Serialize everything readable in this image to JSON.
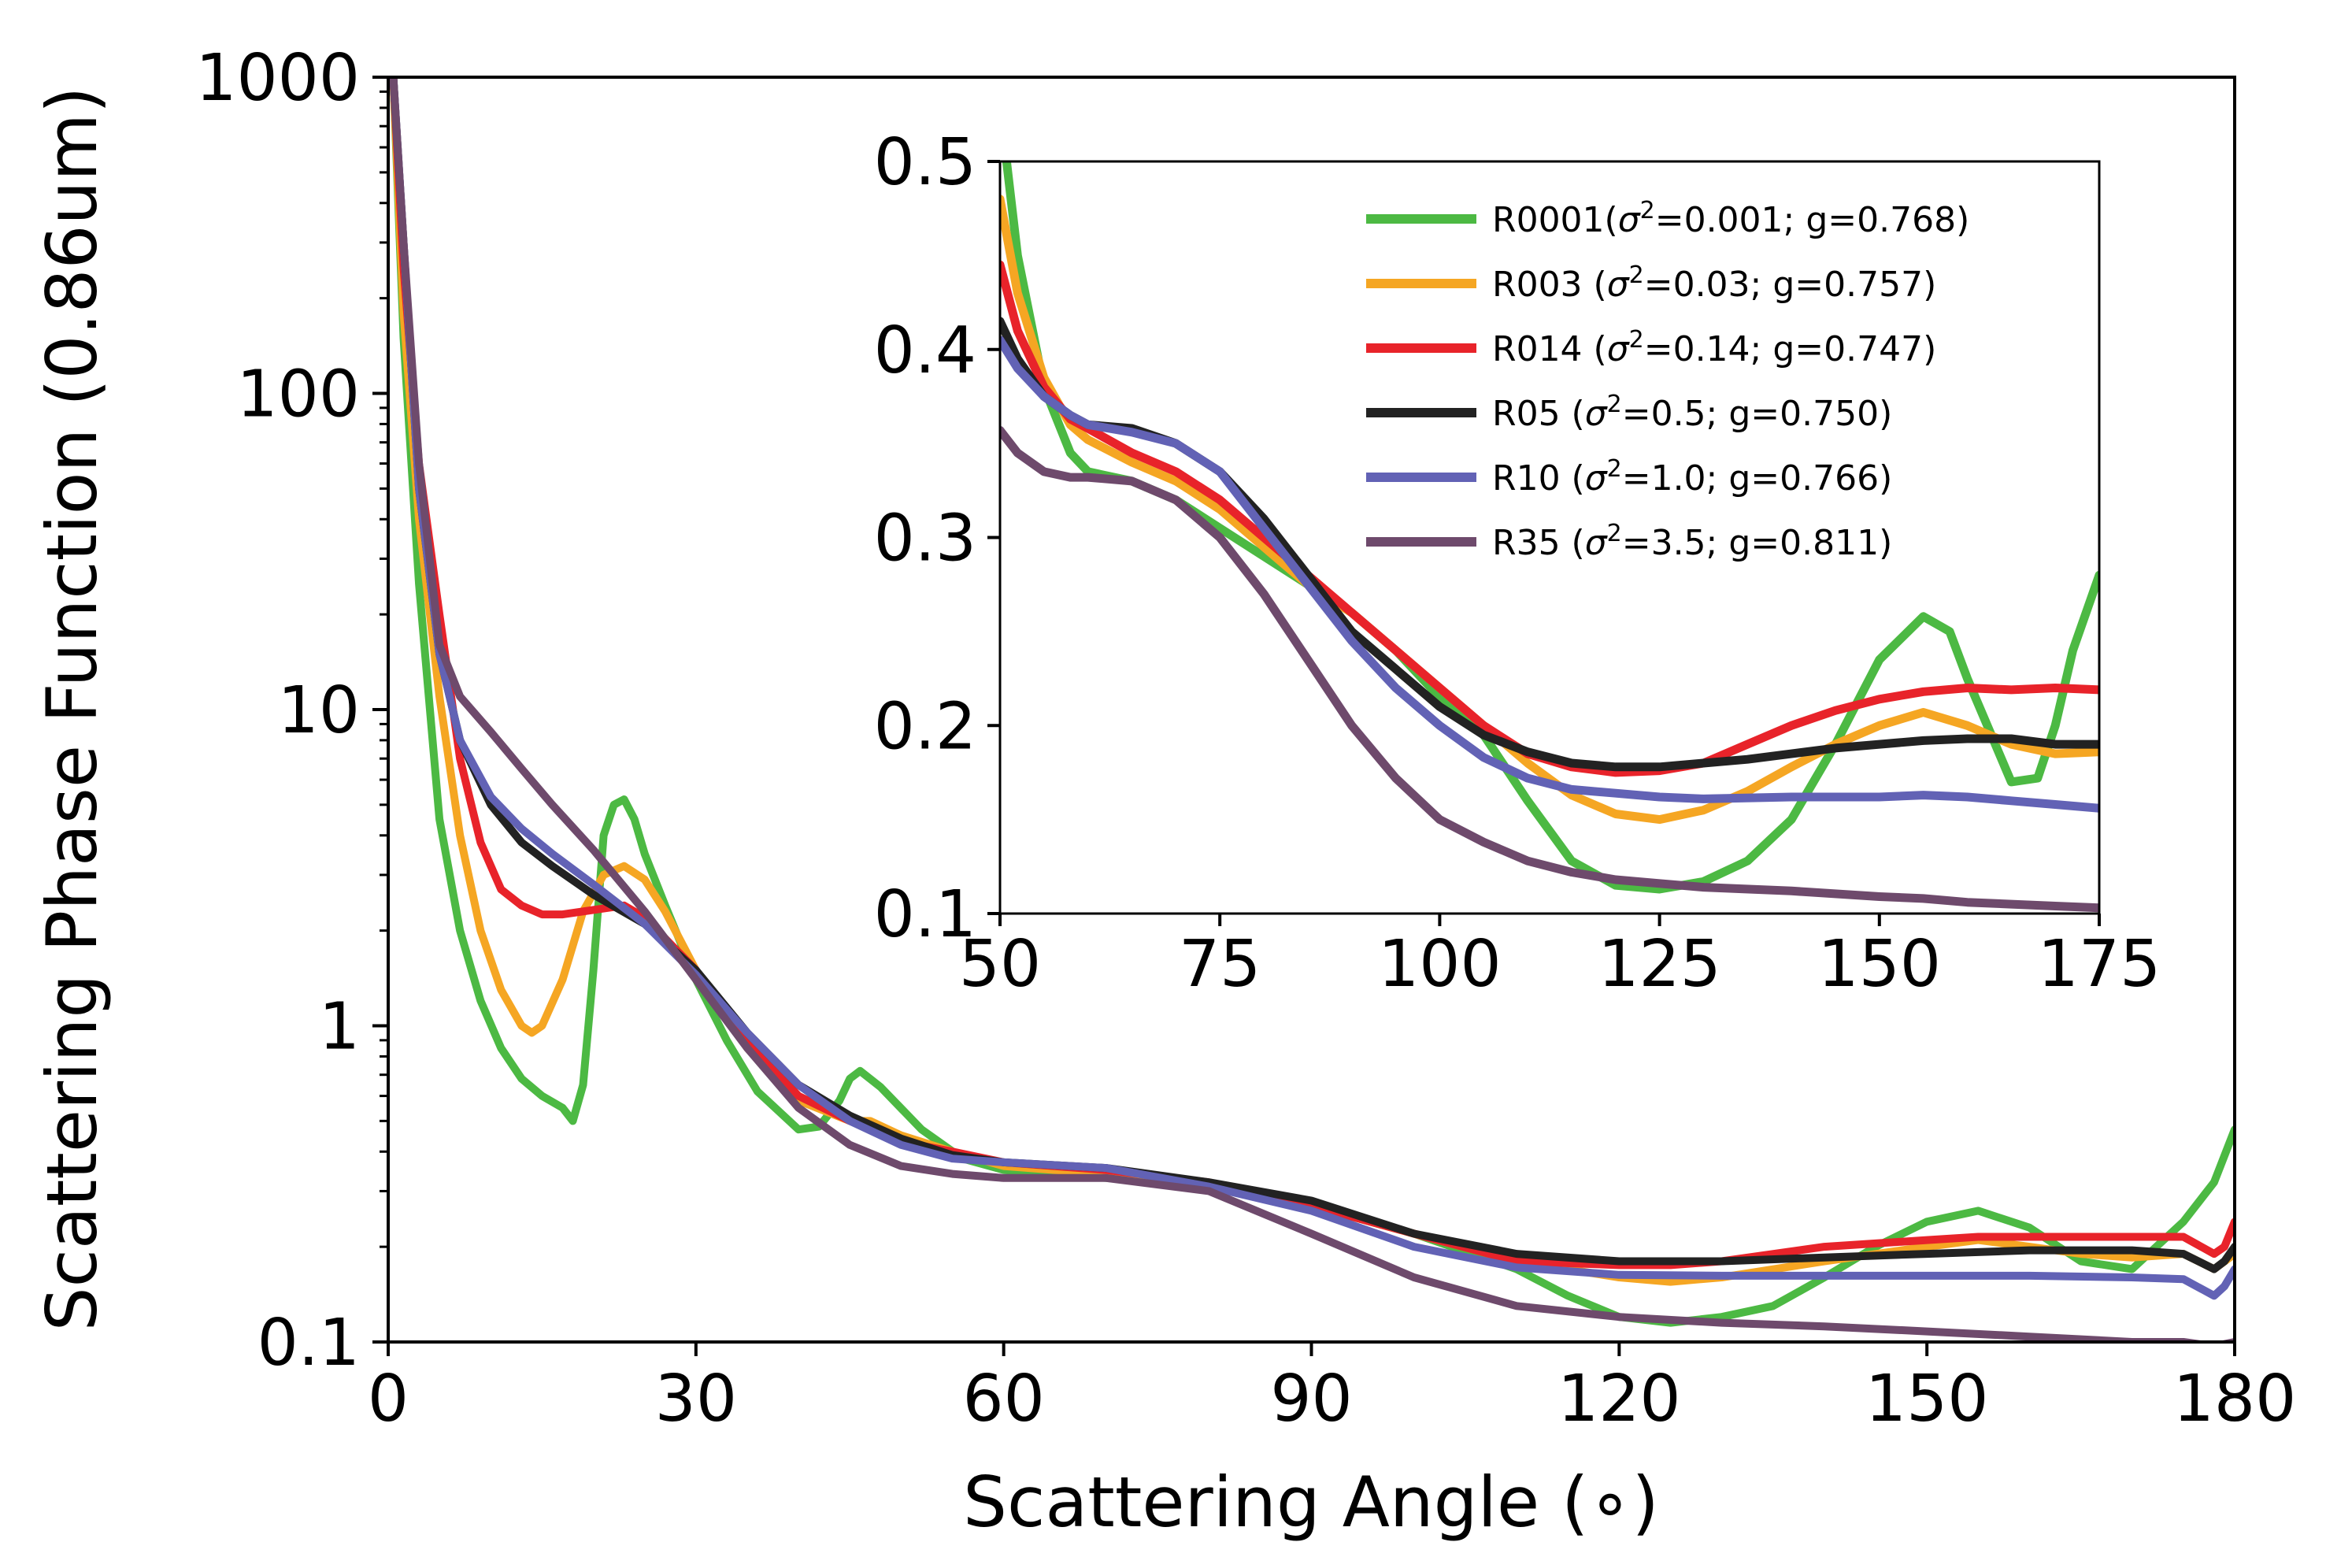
{
  "chart_data": [
    {
      "type": "line",
      "name": "main",
      "xlabel": "Scattering Angle (∘)",
      "ylabel": "Scattering Phase Function (0.86um)",
      "yscale": "log",
      "xlim": [
        0,
        180
      ],
      "ylim": [
        0.1,
        1000
      ],
      "xticks": [
        0,
        30,
        60,
        90,
        120,
        150,
        180
      ],
      "xtick_labels": [
        "0",
        "30",
        "60",
        "90",
        "120",
        "150",
        "180"
      ],
      "yticks": [
        0.1,
        1,
        10,
        100,
        1000
      ],
      "ytick_labels": [
        "0.1",
        "1",
        "10",
        "100",
        "1000"
      ],
      "series": [
        {
          "name": "R0001",
          "color": "#4cb943",
          "x": [
            0.5,
            1.5,
            3,
            5,
            7,
            9,
            11,
            13,
            15,
            17,
            18,
            19,
            20,
            21,
            22,
            23,
            24,
            25,
            27,
            30,
            33,
            36,
            40,
            42,
            44,
            45,
            46,
            48,
            52,
            56,
            60,
            70,
            80,
            90,
            100,
            110,
            115,
            120,
            125,
            130,
            135,
            140,
            145,
            150,
            155,
            160,
            165,
            170,
            175,
            178,
            180
          ],
          "y": [
            1000,
            150,
            25,
            4.5,
            2.0,
            1.2,
            0.85,
            0.68,
            0.6,
            0.55,
            0.5,
            0.65,
            1.5,
            4.0,
            5.0,
            5.2,
            4.5,
            3.5,
            2.4,
            1.4,
            0.9,
            0.62,
            0.47,
            0.48,
            0.58,
            0.68,
            0.72,
            0.64,
            0.47,
            0.38,
            0.35,
            0.33,
            0.31,
            0.27,
            0.22,
            0.17,
            0.14,
            0.12,
            0.115,
            0.12,
            0.13,
            0.16,
            0.2,
            0.24,
            0.26,
            0.23,
            0.18,
            0.17,
            0.24,
            0.32,
            0.47
          ]
        },
        {
          "name": "R003",
          "color": "#f5a623",
          "x": [
            0.5,
            1.5,
            3,
            5,
            7,
            9,
            11,
            13,
            14,
            15,
            17,
            19,
            21,
            23,
            25,
            27,
            30,
            35,
            40,
            45,
            47,
            50,
            55,
            60,
            70,
            80,
            90,
            100,
            110,
            120,
            125,
            130,
            140,
            150,
            155,
            160,
            165,
            170,
            175,
            178,
            180
          ],
          "y": [
            1000,
            180,
            40,
            11,
            4.0,
            2.0,
            1.3,
            1.0,
            0.95,
            1.0,
            1.4,
            2.3,
            3.0,
            3.2,
            2.9,
            2.3,
            1.5,
            0.85,
            0.58,
            0.5,
            0.5,
            0.45,
            0.4,
            0.36,
            0.34,
            0.31,
            0.27,
            0.22,
            0.18,
            0.16,
            0.155,
            0.16,
            0.18,
            0.2,
            0.21,
            0.2,
            0.19,
            0.185,
            0.19,
            0.17,
            0.19
          ]
        },
        {
          "name": "R014",
          "color": "#e8232a",
          "x": [
            0.5,
            1.5,
            3,
            5,
            7,
            9,
            11,
            13,
            15,
            17,
            19,
            21,
            23,
            25,
            30,
            35,
            40,
            45,
            50,
            55,
            60,
            70,
            80,
            90,
            100,
            110,
            120,
            125,
            130,
            140,
            150,
            155,
            160,
            165,
            170,
            175,
            178,
            179,
            180
          ],
          "y": [
            1000,
            250,
            60,
            20,
            7.0,
            3.8,
            2.7,
            2.4,
            2.25,
            2.25,
            2.3,
            2.35,
            2.4,
            2.2,
            1.5,
            0.9,
            0.6,
            0.5,
            0.43,
            0.4,
            0.37,
            0.35,
            0.32,
            0.27,
            0.22,
            0.18,
            0.175,
            0.175,
            0.18,
            0.2,
            0.21,
            0.215,
            0.215,
            0.215,
            0.215,
            0.215,
            0.19,
            0.2,
            0.24
          ]
        },
        {
          "name": "R05",
          "color": "#222222",
          "x": [
            0.5,
            1.5,
            3,
            5,
            7,
            10,
            13,
            16,
            20,
            25,
            30,
            35,
            40,
            45,
            50,
            55,
            60,
            70,
            80,
            90,
            100,
            110,
            120,
            125,
            130,
            140,
            150,
            160,
            170,
            175,
            178,
            179,
            180
          ],
          "y": [
            1000,
            300,
            50,
            15,
            8.0,
            5.0,
            3.8,
            3.2,
            2.6,
            2.1,
            1.5,
            0.95,
            0.65,
            0.52,
            0.44,
            0.39,
            0.37,
            0.355,
            0.32,
            0.28,
            0.22,
            0.19,
            0.18,
            0.18,
            0.18,
            0.185,
            0.19,
            0.195,
            0.195,
            0.19,
            0.17,
            0.18,
            0.2
          ]
        },
        {
          "name": "R10",
          "color": "#6262b5",
          "x": [
            0.5,
            1.5,
            3,
            5,
            7,
            10,
            13,
            16,
            20,
            25,
            30,
            35,
            40,
            45,
            50,
            55,
            60,
            70,
            80,
            90,
            100,
            110,
            120,
            130,
            140,
            150,
            160,
            170,
            175,
            178,
            179,
            180
          ],
          "y": [
            1000,
            300,
            50,
            15,
            8.0,
            5.3,
            4.2,
            3.5,
            2.8,
            2.1,
            1.45,
            0.95,
            0.65,
            0.5,
            0.42,
            0.38,
            0.37,
            0.355,
            0.31,
            0.26,
            0.2,
            0.172,
            0.163,
            0.162,
            0.162,
            0.162,
            0.162,
            0.16,
            0.158,
            0.14,
            0.15,
            0.17
          ]
        },
        {
          "name": "R35",
          "color": "#6e4a6c",
          "x": [
            0.5,
            1.5,
            3,
            5,
            7,
            10,
            13,
            16,
            20,
            25,
            30,
            35,
            40,
            45,
            50,
            55,
            60,
            70,
            80,
            90,
            100,
            110,
            120,
            130,
            140,
            150,
            160,
            170,
            175,
            178,
            180
          ],
          "y": [
            1000,
            300,
            60,
            16,
            11.0,
            8.5,
            6.5,
            5.0,
            3.6,
            2.3,
            1.4,
            0.85,
            0.55,
            0.42,
            0.36,
            0.34,
            0.33,
            0.33,
            0.3,
            0.22,
            0.16,
            0.13,
            0.12,
            0.115,
            0.112,
            0.108,
            0.104,
            0.1,
            0.1,
            0.097,
            0.1
          ]
        }
      ]
    },
    {
      "type": "line",
      "name": "inset",
      "yscale": "linear",
      "xlim": [
        50,
        175
      ],
      "ylim": [
        0.1,
        0.5
      ],
      "xticks": [
        50,
        75,
        100,
        125,
        150,
        175
      ],
      "xtick_labels": [
        "50",
        "75",
        "100",
        "125",
        "150",
        "175"
      ],
      "yticks": [
        0.1,
        0.2,
        0.3,
        0.4,
        0.5
      ],
      "ytick_labels": [
        "0.1",
        "0.2",
        "0.3",
        "0.4",
        "0.5"
      ],
      "legend_position": "top-right",
      "series": [
        {
          "name": "R0001",
          "color": "#4cb943",
          "legend": [
            "R0001(",
            "σ",
            "2",
            "=0.001; g=0.768)"
          ],
          "x": [
            50,
            52,
            55,
            58,
            60,
            65,
            70,
            75,
            80,
            85,
            90,
            95,
            100,
            105,
            110,
            115,
            120,
            125,
            130,
            135,
            140,
            145,
            150,
            155,
            158,
            160,
            165,
            168,
            170,
            172,
            175
          ],
          "y": [
            0.53,
            0.45,
            0.38,
            0.345,
            0.335,
            0.33,
            0.32,
            0.305,
            0.29,
            0.275,
            0.26,
            0.24,
            0.215,
            0.195,
            0.16,
            0.128,
            0.115,
            0.113,
            0.117,
            0.128,
            0.15,
            0.19,
            0.235,
            0.258,
            0.25,
            0.225,
            0.17,
            0.172,
            0.2,
            0.24,
            0.28
          ]
        },
        {
          "name": "R003",
          "color": "#f5a623",
          "legend": [
            "R003  (",
            "σ",
            "2",
            "=0.03;   g=0.757)"
          ],
          "x": [
            50,
            52,
            55,
            58,
            60,
            65,
            70,
            75,
            80,
            85,
            90,
            95,
            100,
            105,
            110,
            115,
            120,
            125,
            130,
            135,
            140,
            145,
            150,
            155,
            160,
            165,
            170,
            175
          ],
          "y": [
            0.48,
            0.43,
            0.385,
            0.36,
            0.352,
            0.34,
            0.33,
            0.315,
            0.295,
            0.275,
            0.26,
            0.24,
            0.22,
            0.2,
            0.18,
            0.163,
            0.153,
            0.15,
            0.155,
            0.165,
            0.178,
            0.19,
            0.2,
            0.207,
            0.2,
            0.19,
            0.185,
            0.186
          ]
        },
        {
          "name": "R014",
          "color": "#e8232a",
          "legend": [
            "R014  (",
            "σ",
            "2",
            "=0.14;   g=0.747)"
          ],
          "x": [
            50,
            52,
            55,
            58,
            60,
            65,
            70,
            75,
            80,
            85,
            90,
            95,
            100,
            105,
            110,
            115,
            120,
            125,
            130,
            135,
            140,
            145,
            150,
            155,
            160,
            165,
            170,
            175
          ],
          "y": [
            0.445,
            0.41,
            0.38,
            0.363,
            0.358,
            0.345,
            0.335,
            0.32,
            0.3,
            0.28,
            0.26,
            0.24,
            0.22,
            0.2,
            0.185,
            0.178,
            0.175,
            0.176,
            0.18,
            0.19,
            0.2,
            0.208,
            0.214,
            0.218,
            0.22,
            0.219,
            0.22,
            0.219
          ]
        },
        {
          "name": "R05",
          "color": "#222222",
          "legend": [
            "R05  (",
            "σ",
            "2",
            "=0.5;     g=0.750)"
          ],
          "x": [
            50,
            52,
            55,
            58,
            60,
            65,
            70,
            75,
            80,
            85,
            90,
            95,
            100,
            105,
            110,
            115,
            120,
            125,
            130,
            135,
            140,
            145,
            150,
            155,
            160,
            165,
            170,
            175
          ],
          "y": [
            0.415,
            0.395,
            0.375,
            0.365,
            0.36,
            0.358,
            0.35,
            0.335,
            0.31,
            0.28,
            0.25,
            0.23,
            0.21,
            0.195,
            0.186,
            0.18,
            0.178,
            0.178,
            0.18,
            0.182,
            0.185,
            0.188,
            0.19,
            0.192,
            0.193,
            0.193,
            0.19,
            0.19
          ]
        },
        {
          "name": "R10",
          "color": "#6262b5",
          "legend": [
            "R10  (",
            "σ",
            "2",
            "=1.0;     g=0.766)"
          ],
          "x": [
            50,
            52,
            55,
            58,
            60,
            65,
            70,
            75,
            80,
            85,
            90,
            95,
            100,
            105,
            110,
            115,
            120,
            125,
            130,
            140,
            150,
            155,
            160,
            165,
            170,
            175
          ],
          "y": [
            0.405,
            0.39,
            0.375,
            0.365,
            0.36,
            0.356,
            0.35,
            0.335,
            0.305,
            0.275,
            0.245,
            0.22,
            0.2,
            0.183,
            0.172,
            0.166,
            0.164,
            0.162,
            0.161,
            0.162,
            0.162,
            0.163,
            0.162,
            0.16,
            0.158,
            0.156
          ]
        },
        {
          "name": "R35",
          "color": "#6e4a6c",
          "legend": [
            "R35  (",
            "σ",
            "2",
            "=3.5;     g=0.811)"
          ],
          "x": [
            50,
            52,
            55,
            58,
            60,
            65,
            70,
            75,
            80,
            85,
            90,
            95,
            100,
            105,
            110,
            115,
            120,
            125,
            130,
            140,
            150,
            155,
            160,
            165,
            170,
            175
          ],
          "y": [
            0.357,
            0.345,
            0.335,
            0.332,
            0.332,
            0.33,
            0.32,
            0.3,
            0.27,
            0.235,
            0.2,
            0.172,
            0.15,
            0.138,
            0.128,
            0.122,
            0.118,
            0.116,
            0.114,
            0.112,
            0.109,
            0.108,
            0.106,
            0.105,
            0.104,
            0.103
          ]
        }
      ]
    }
  ]
}
